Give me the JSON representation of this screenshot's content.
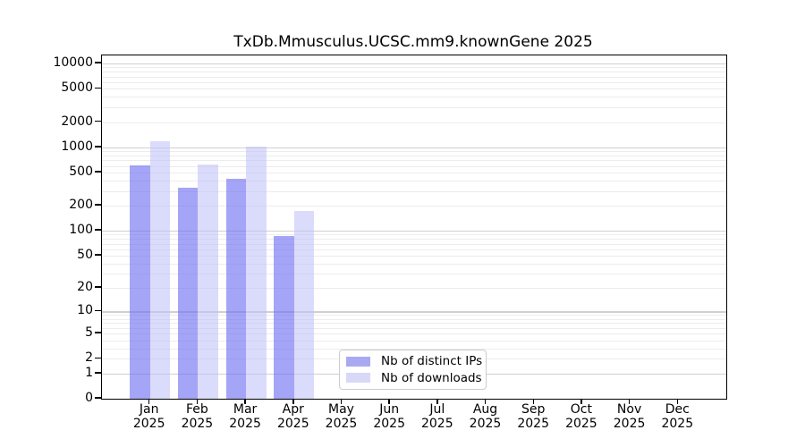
{
  "title": "TxDb.Mmusculus.UCSC.mm9.knownGene 2025",
  "colors": {
    "bar_ips": "rgba(110,110,242,0.62)",
    "bar_downloads": "rgba(190,190,248,0.55)",
    "legend_swatch_ips": "#a9a9f2",
    "legend_swatch_downloads": "#d8d8f7",
    "grid_major": "#d0d0d0",
    "grid_minor": "#ececec",
    "axis": "#000000"
  },
  "chart_data": {
    "type": "bar",
    "title": "TxDb.Mmusculus.UCSC.mm9.knownGene 2025",
    "categories": [
      "Jan 2025",
      "Feb 2025",
      "Mar 2025",
      "Apr 2025",
      "May 2025",
      "Jun 2025",
      "Jul 2025",
      "Aug 2025",
      "Sep 2025",
      "Oct 2025",
      "Nov 2025",
      "Dec 2025"
    ],
    "months": [
      "Jan",
      "Feb",
      "Mar",
      "Apr",
      "May",
      "Jun",
      "Jul",
      "Aug",
      "Sep",
      "Oct",
      "Nov",
      "Dec"
    ],
    "year_label": "2025",
    "series": [
      {
        "name": "Nb of distinct IPs",
        "values": [
          605,
          333,
          420,
          87,
          null,
          null,
          null,
          null,
          null,
          null,
          null,
          null
        ]
      },
      {
        "name": "Nb of downloads",
        "values": [
          1170,
          627,
          1030,
          174,
          null,
          null,
          null,
          null,
          null,
          null,
          null,
          null
        ]
      }
    ],
    "yscale": "log10(1+v)",
    "yticks": [
      0,
      1,
      2,
      5,
      10,
      20,
      50,
      100,
      200,
      500,
      1000,
      2000,
      5000,
      10000
    ],
    "ylim": [
      0,
      12500
    ],
    "grid": "major-and-minor-horizontal",
    "legend_position": "lower center"
  }
}
